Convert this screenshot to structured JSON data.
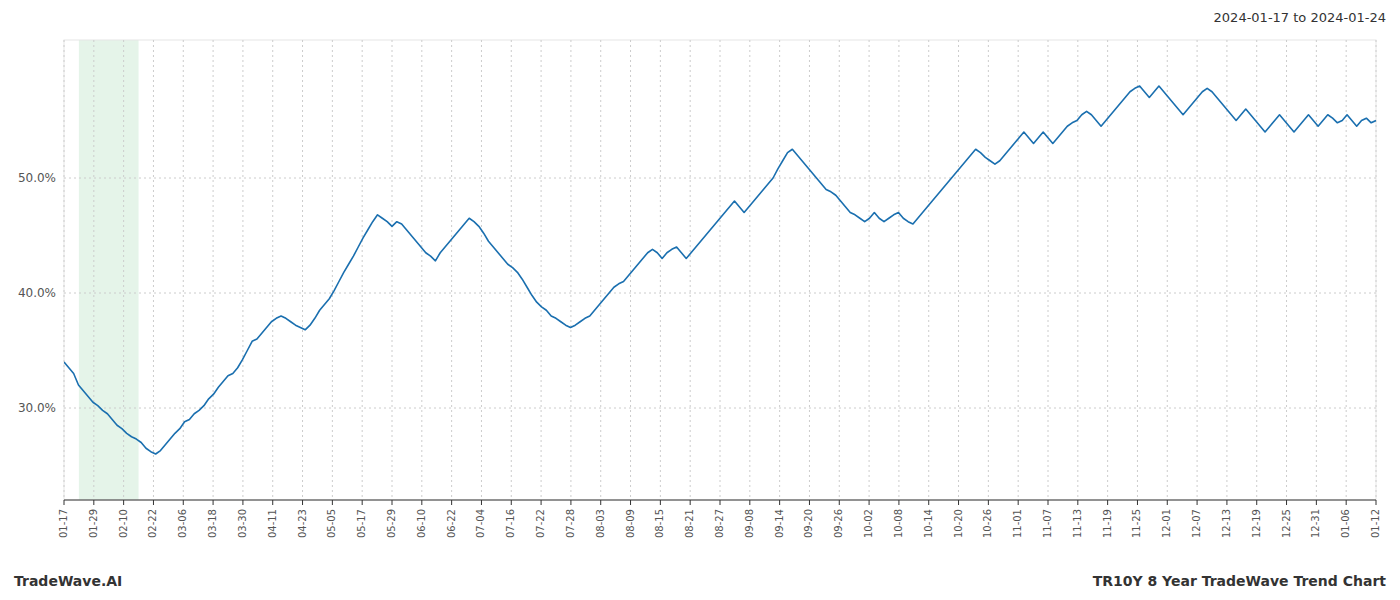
{
  "chart_data": {
    "type": "line",
    "annotations": [
      "2024-01-17 to 2024-01-24",
      "TradeWave.AI",
      "TR10Y 8 Year TradeWave Trend Chart"
    ],
    "color": "#1a6faf",
    "grid": true,
    "highlight": {
      "start": 0.5,
      "end": 2.5,
      "color": "#d4edda"
    },
    "xlim": [
      0,
      44
    ],
    "xticks": [
      {
        "value": 0,
        "label": "01-17"
      },
      {
        "value": 1,
        "label": "01-29"
      },
      {
        "value": 2,
        "label": "02-10"
      },
      {
        "value": 3,
        "label": "02-22"
      },
      {
        "value": 4,
        "label": "03-06"
      },
      {
        "value": 5,
        "label": "03-18"
      },
      {
        "value": 6,
        "label": "03-30"
      },
      {
        "value": 7,
        "label": "04-11"
      },
      {
        "value": 8,
        "label": "04-23"
      },
      {
        "value": 9,
        "label": "05-05"
      },
      {
        "value": 10,
        "label": "05-17"
      },
      {
        "value": 11,
        "label": "05-29"
      },
      {
        "value": 12,
        "label": "06-10"
      },
      {
        "value": 13,
        "label": "06-22"
      },
      {
        "value": 14,
        "label": "07-04"
      },
      {
        "value": 15,
        "label": "07-16"
      },
      {
        "value": 16,
        "label": "07-22"
      },
      {
        "value": 17,
        "label": "07-28"
      },
      {
        "value": 18,
        "label": "08-03"
      },
      {
        "value": 19,
        "label": "08-09"
      },
      {
        "value": 20,
        "label": "08-15"
      },
      {
        "value": 21,
        "label": "08-21"
      },
      {
        "value": 22,
        "label": "08-27"
      },
      {
        "value": 23,
        "label": "09-08"
      },
      {
        "value": 24,
        "label": "09-14"
      },
      {
        "value": 25,
        "label": "09-20"
      },
      {
        "value": 26,
        "label": "09-26"
      },
      {
        "value": 27,
        "label": "10-02"
      },
      {
        "value": 28,
        "label": "10-08"
      },
      {
        "value": 29,
        "label": "10-14"
      },
      {
        "value": 30,
        "label": "10-20"
      },
      {
        "value": 31,
        "label": "10-26"
      },
      {
        "value": 32,
        "label": "11-01"
      },
      {
        "value": 33,
        "label": "11-07"
      },
      {
        "value": 34,
        "label": "11-13"
      },
      {
        "value": 35,
        "label": "11-19"
      },
      {
        "value": 36,
        "label": "11-25"
      },
      {
        "value": 37,
        "label": "12-01"
      },
      {
        "value": 38,
        "label": "12-07"
      },
      {
        "value": 39,
        "label": "12-13"
      },
      {
        "value": 40,
        "label": "12-19"
      },
      {
        "value": 41,
        "label": "12-25"
      },
      {
        "value": 42,
        "label": "12-31"
      },
      {
        "value": 43,
        "label": "01-06"
      },
      {
        "value": 44,
        "label": "01-12"
      }
    ],
    "ylim": [
      22,
      62
    ],
    "yticks": [
      {
        "value": 30.0,
        "label": "30.0%"
      },
      {
        "value": 40.0,
        "label": "40.0%"
      },
      {
        "value": 50.0,
        "label": "50.0%"
      }
    ],
    "x": [
      0,
      0.1618,
      0.3235,
      0.4853,
      0.6471,
      0.8088,
      0.9706,
      1.1324,
      1.2941,
      1.4559,
      1.6176,
      1.7794,
      1.9412,
      2.1029,
      2.2647,
      2.4265,
      2.5882,
      2.75,
      2.9118,
      3.0735,
      3.2353,
      3.3971,
      3.5588,
      3.7206,
      3.8824,
      4.0441,
      4.2059,
      4.3676,
      4.5294,
      4.6912,
      4.8529,
      5.0147,
      5.1765,
      5.3382,
      5.5,
      5.6618,
      5.8235,
      5.9853,
      6.1471,
      6.3088,
      6.4706,
      6.6324,
      6.7941,
      6.9559,
      7.1176,
      7.2794,
      7.4412,
      7.6029,
      7.7647,
      7.9265,
      8.0882,
      8.25,
      8.4118,
      8.5735,
      8.7353,
      8.8971,
      9.0588,
      9.2206,
      9.3824,
      9.5441,
      9.7059,
      9.8676,
      10.0294,
      10.1912,
      10.3529,
      10.5147,
      10.6765,
      10.8382,
      11,
      11.1618,
      11.3235,
      11.4853,
      11.6471,
      11.8088,
      11.9706,
      12.1324,
      12.2941,
      12.4559,
      12.6176,
      12.7794,
      12.9412,
      13.1029,
      13.2647,
      13.4265,
      13.5882,
      13.75,
      13.9118,
      14.0735,
      14.2353,
      14.3971,
      14.5588,
      14.7206,
      14.8824,
      15.0441,
      15.2059,
      15.3676,
      15.5294,
      15.6912,
      15.8529,
      16.0147,
      16.1765,
      16.3382,
      16.5,
      16.6618,
      16.8235,
      16.9853,
      17.1471,
      17.3088,
      17.4706,
      17.6324,
      17.7941,
      17.9559,
      18.1176,
      18.2794,
      18.4412,
      18.6029,
      18.7647,
      18.9265,
      19.0882,
      19.25,
      19.4118,
      19.5735,
      19.7353,
      19.8971,
      20.0588,
      20.2206,
      20.3824,
      20.5441,
      20.7059,
      20.8676,
      21.0294,
      21.1912,
      21.3529,
      21.5147,
      21.6765,
      21.8382,
      22,
      22.1618,
      22.3235,
      22.4853,
      22.6471,
      22.8088,
      22.9706,
      23.1324,
      23.2941,
      23.4559,
      23.6176,
      23.7794,
      23.9412,
      24.1029,
      24.2647,
      24.4265,
      24.5882,
      24.75,
      24.9118,
      25.0735,
      25.2353,
      25.3971,
      25.5588,
      25.7206,
      25.8824,
      26.0441,
      26.2059,
      26.3676,
      26.5294,
      26.6912,
      26.8529,
      27.0147,
      27.1765,
      27.3382,
      27.5,
      27.6618,
      27.8235,
      27.9853,
      28.1471,
      28.3088,
      28.4706,
      28.6324,
      28.7941,
      28.9559,
      29.1176,
      29.2794,
      29.4412,
      29.6029,
      29.7647,
      29.9265,
      30.0882,
      30.25,
      30.4118,
      30.5735,
      30.7353,
      30.8971,
      31.0588,
      31.2206,
      31.3824,
      31.5441,
      31.7059,
      31.8676,
      32.0294,
      32.1912,
      32.3529,
      32.5147,
      32.6765,
      32.8382,
      33,
      33.1618,
      33.3235,
      33.4853,
      33.6471,
      33.8088,
      33.9706,
      34.1324,
      34.2941,
      34.4559,
      34.6176,
      34.7794,
      34.9412,
      35.1029,
      35.2647,
      35.4265,
      35.5882,
      35.75,
      35.9118,
      36.0735,
      36.2353,
      36.3971,
      36.5588,
      36.7206,
      36.8824,
      37.0441,
      37.2059,
      37.3676,
      37.5294,
      37.6912,
      37.8529,
      38.0147,
      38.1765,
      38.3382,
      38.5,
      38.6618,
      38.8235,
      38.9853,
      39.1471,
      39.3088,
      39.4706,
      39.6324,
      39.7941,
      39.9559,
      40.1176,
      40.2794,
      40.4412,
      40.6029,
      40.7647,
      40.9265,
      41.0882,
      41.25,
      41.4118,
      41.5735,
      41.7353,
      41.8971,
      42.0588,
      42.2206,
      42.3824,
      42.5441,
      42.7059,
      42.8676,
      43.0294,
      43.1912,
      43.3529,
      43.5147,
      43.6765,
      43.8382,
      44
    ],
    "values": [
      34.0,
      33.5,
      33.0,
      32.0,
      31.5,
      31.0,
      30.5,
      30.2,
      29.8,
      29.5,
      29.0,
      28.5,
      28.2,
      27.8,
      27.5,
      27.3,
      27.0,
      26.5,
      26.2,
      26.0,
      26.3,
      26.8,
      27.3,
      27.8,
      28.2,
      28.8,
      29.0,
      29.5,
      29.8,
      30.2,
      30.8,
      31.2,
      31.8,
      32.3,
      32.8,
      33.0,
      33.5,
      34.2,
      35.0,
      35.8,
      36.0,
      36.5,
      37.0,
      37.5,
      37.8,
      38.0,
      37.8,
      37.5,
      37.2,
      37.0,
      36.8,
      37.2,
      37.8,
      38.5,
      39.0,
      39.5,
      40.2,
      41.0,
      41.8,
      42.5,
      43.2,
      44.0,
      44.8,
      45.5,
      46.2,
      46.8,
      46.5,
      46.2,
      45.8,
      46.2,
      46.0,
      45.5,
      45.0,
      44.5,
      44.0,
      43.5,
      43.2,
      42.8,
      43.5,
      44.0,
      44.5,
      45.0,
      45.5,
      46.0,
      46.5,
      46.2,
      45.8,
      45.2,
      44.5,
      44.0,
      43.5,
      43.0,
      42.5,
      42.2,
      41.8,
      41.2,
      40.5,
      39.8,
      39.2,
      38.8,
      38.5,
      38.0,
      37.8,
      37.5,
      37.2,
      37.0,
      37.2,
      37.5,
      37.8,
      38.0,
      38.5,
      39.0,
      39.5,
      40.0,
      40.5,
      40.8,
      41.0,
      41.5,
      42.0,
      42.5,
      43.0,
      43.5,
      43.8,
      43.5,
      43.0,
      43.5,
      43.8,
      44.0,
      43.5,
      43.0,
      43.5,
      44.0,
      44.5,
      45.0,
      45.5,
      46.0,
      46.5,
      47.0,
      47.5,
      48.0,
      47.5,
      47.0,
      47.5,
      48.0,
      48.5,
      49.0,
      49.5,
      50.0,
      50.8,
      51.5,
      52.2,
      52.5,
      52.0,
      51.5,
      51.0,
      50.5,
      50.0,
      49.5,
      49.0,
      48.8,
      48.5,
      48.0,
      47.5,
      47.0,
      46.8,
      46.5,
      46.2,
      46.5,
      47.0,
      46.5,
      46.2,
      46.5,
      46.8,
      47.0,
      46.5,
      46.2,
      46.0,
      46.5,
      47.0,
      47.5,
      48.0,
      48.5,
      49.0,
      49.5,
      50.0,
      50.5,
      51.0,
      51.5,
      52.0,
      52.5,
      52.2,
      51.8,
      51.5,
      51.2,
      51.5,
      52.0,
      52.5,
      53.0,
      53.5,
      54.0,
      53.5,
      53.0,
      53.5,
      54.0,
      53.5,
      53.0,
      53.5,
      54.0,
      54.5,
      54.8,
      55.0,
      55.5,
      55.8,
      55.5,
      55.0,
      54.5,
      55.0,
      55.5,
      56.0,
      56.5,
      57.0,
      57.5,
      57.8,
      58.0,
      57.5,
      57.0,
      57.5,
      58.0,
      57.5,
      57.0,
      56.5,
      56.0,
      55.5,
      56.0,
      56.5,
      57.0,
      57.5,
      57.8,
      57.5,
      57.0,
      56.5,
      56.0,
      55.5,
      55.0,
      55.5,
      56.0,
      55.5,
      55.0,
      54.5,
      54.0,
      54.5,
      55.0,
      55.5,
      55.0,
      54.5,
      54.0,
      54.5,
      55.0,
      55.5,
      55.0,
      54.5,
      55.0,
      55.5,
      55.2,
      54.8,
      55.0,
      55.5,
      55.0,
      54.5,
      55.0,
      55.2,
      54.8,
      55.0
    ]
  }
}
